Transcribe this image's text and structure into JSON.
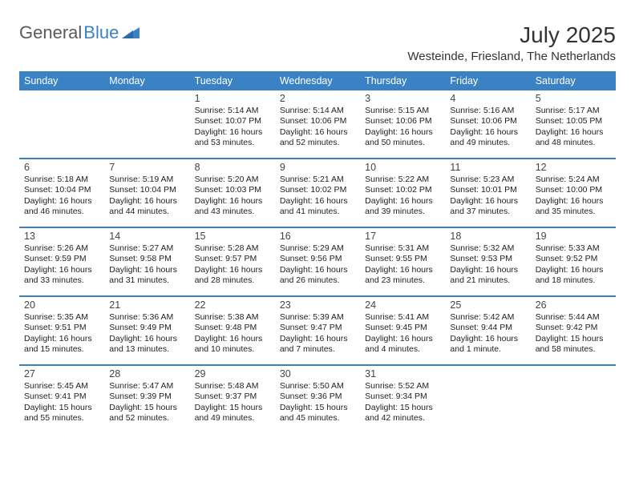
{
  "logo": {
    "text1": "General",
    "text2": "Blue"
  },
  "title": "July 2025",
  "subtitle": "Westeinde, Friesland, The Netherlands",
  "colors": {
    "header_bg": "#3b82c4",
    "header_fg": "#ffffff",
    "divider": "#3b82c4",
    "text": "#222222",
    "logo_gray": "#5a5a5a",
    "logo_blue": "#3b82c4",
    "page_bg": "#ffffff"
  },
  "layout": {
    "columns": 7,
    "rows": 5,
    "day_fontsize": 12.5,
    "body_fontsize": 10.5,
    "title_fontsize": 28,
    "subtitle_fontsize": 15
  },
  "day_headers": [
    "Sunday",
    "Monday",
    "Tuesday",
    "Wednesday",
    "Thursday",
    "Friday",
    "Saturday"
  ],
  "weeks": [
    [
      null,
      null,
      {
        "n": "1",
        "sr": "5:14 AM",
        "ss": "10:07 PM",
        "dl": "16 hours and 53 minutes."
      },
      {
        "n": "2",
        "sr": "5:14 AM",
        "ss": "10:06 PM",
        "dl": "16 hours and 52 minutes."
      },
      {
        "n": "3",
        "sr": "5:15 AM",
        "ss": "10:06 PM",
        "dl": "16 hours and 50 minutes."
      },
      {
        "n": "4",
        "sr": "5:16 AM",
        "ss": "10:06 PM",
        "dl": "16 hours and 49 minutes."
      },
      {
        "n": "5",
        "sr": "5:17 AM",
        "ss": "10:05 PM",
        "dl": "16 hours and 48 minutes."
      }
    ],
    [
      {
        "n": "6",
        "sr": "5:18 AM",
        "ss": "10:04 PM",
        "dl": "16 hours and 46 minutes."
      },
      {
        "n": "7",
        "sr": "5:19 AM",
        "ss": "10:04 PM",
        "dl": "16 hours and 44 minutes."
      },
      {
        "n": "8",
        "sr": "5:20 AM",
        "ss": "10:03 PM",
        "dl": "16 hours and 43 minutes."
      },
      {
        "n": "9",
        "sr": "5:21 AM",
        "ss": "10:02 PM",
        "dl": "16 hours and 41 minutes."
      },
      {
        "n": "10",
        "sr": "5:22 AM",
        "ss": "10:02 PM",
        "dl": "16 hours and 39 minutes."
      },
      {
        "n": "11",
        "sr": "5:23 AM",
        "ss": "10:01 PM",
        "dl": "16 hours and 37 minutes."
      },
      {
        "n": "12",
        "sr": "5:24 AM",
        "ss": "10:00 PM",
        "dl": "16 hours and 35 minutes."
      }
    ],
    [
      {
        "n": "13",
        "sr": "5:26 AM",
        "ss": "9:59 PM",
        "dl": "16 hours and 33 minutes."
      },
      {
        "n": "14",
        "sr": "5:27 AM",
        "ss": "9:58 PM",
        "dl": "16 hours and 31 minutes."
      },
      {
        "n": "15",
        "sr": "5:28 AM",
        "ss": "9:57 PM",
        "dl": "16 hours and 28 minutes."
      },
      {
        "n": "16",
        "sr": "5:29 AM",
        "ss": "9:56 PM",
        "dl": "16 hours and 26 minutes."
      },
      {
        "n": "17",
        "sr": "5:31 AM",
        "ss": "9:55 PM",
        "dl": "16 hours and 23 minutes."
      },
      {
        "n": "18",
        "sr": "5:32 AM",
        "ss": "9:53 PM",
        "dl": "16 hours and 21 minutes."
      },
      {
        "n": "19",
        "sr": "5:33 AM",
        "ss": "9:52 PM",
        "dl": "16 hours and 18 minutes."
      }
    ],
    [
      {
        "n": "20",
        "sr": "5:35 AM",
        "ss": "9:51 PM",
        "dl": "16 hours and 15 minutes."
      },
      {
        "n": "21",
        "sr": "5:36 AM",
        "ss": "9:49 PM",
        "dl": "16 hours and 13 minutes."
      },
      {
        "n": "22",
        "sr": "5:38 AM",
        "ss": "9:48 PM",
        "dl": "16 hours and 10 minutes."
      },
      {
        "n": "23",
        "sr": "5:39 AM",
        "ss": "9:47 PM",
        "dl": "16 hours and 7 minutes."
      },
      {
        "n": "24",
        "sr": "5:41 AM",
        "ss": "9:45 PM",
        "dl": "16 hours and 4 minutes."
      },
      {
        "n": "25",
        "sr": "5:42 AM",
        "ss": "9:44 PM",
        "dl": "16 hours and 1 minute."
      },
      {
        "n": "26",
        "sr": "5:44 AM",
        "ss": "9:42 PM",
        "dl": "15 hours and 58 minutes."
      }
    ],
    [
      {
        "n": "27",
        "sr": "5:45 AM",
        "ss": "9:41 PM",
        "dl": "15 hours and 55 minutes."
      },
      {
        "n": "28",
        "sr": "5:47 AM",
        "ss": "9:39 PM",
        "dl": "15 hours and 52 minutes."
      },
      {
        "n": "29",
        "sr": "5:48 AM",
        "ss": "9:37 PM",
        "dl": "15 hours and 49 minutes."
      },
      {
        "n": "30",
        "sr": "5:50 AM",
        "ss": "9:36 PM",
        "dl": "15 hours and 45 minutes."
      },
      {
        "n": "31",
        "sr": "5:52 AM",
        "ss": "9:34 PM",
        "dl": "15 hours and 42 minutes."
      },
      null,
      null
    ]
  ],
  "labels": {
    "sunrise": "Sunrise:",
    "sunset": "Sunset:",
    "daylight": "Daylight:"
  }
}
